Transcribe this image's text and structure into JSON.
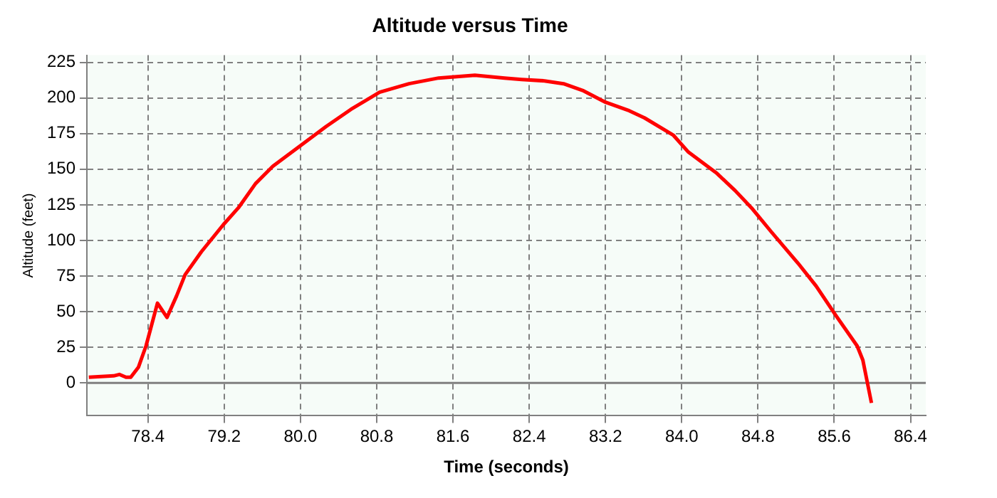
{
  "chart_data": {
    "type": "line",
    "title": "Altitude versus Time",
    "xlabel": "Time (seconds)",
    "ylabel": "Altitude (feet)",
    "x": [
      77.78,
      78.04,
      78.1,
      78.17,
      78.22,
      78.3,
      78.38,
      78.5,
      78.6,
      78.7,
      78.79,
      78.96,
      79.19,
      79.35,
      79.53,
      79.71,
      79.97,
      80.27,
      80.53,
      80.83,
      81.14,
      81.45,
      81.83,
      82.14,
      82.32,
      82.56,
      82.76,
      82.97,
      83.2,
      83.45,
      83.61,
      83.91,
      84.07,
      84.37,
      84.56,
      84.73,
      84.94,
      85.22,
      85.41,
      85.61,
      85.84,
      85.9,
      85.99
    ],
    "series": [
      {
        "color": "#ff0000",
        "values": [
          4,
          5,
          6,
          4,
          4,
          11,
          26,
          56,
          46,
          61,
          76,
          92,
          111,
          123,
          140,
          152,
          165,
          180,
          192,
          204,
          210,
          214,
          216,
          214,
          213,
          212,
          210,
          205,
          197,
          191,
          186,
          174,
          162,
          147,
          135,
          123,
          106,
          84,
          68,
          48,
          26,
          16,
          -14
        ]
      }
    ],
    "xlim": [
      77.76,
      86.56
    ],
    "xticks": [
      78.4,
      79.2,
      {
        "value": 80,
        "label": "80.0"
      },
      80.8,
      81.6,
      82.4,
      83.2,
      {
        "value": 84,
        "label": "84.0"
      },
      84.8,
      85.6,
      86.4
    ],
    "ylim": [
      -23,
      230
    ],
    "yticks": [
      0,
      25,
      50,
      75,
      100,
      125,
      150,
      175,
      200,
      225
    ],
    "grid": true,
    "marker": "none",
    "line_style": "solid",
    "legend": false,
    "ref_lines": [
      {
        "axis": "y",
        "value": 0,
        "color": "#808080"
      }
    ]
  }
}
